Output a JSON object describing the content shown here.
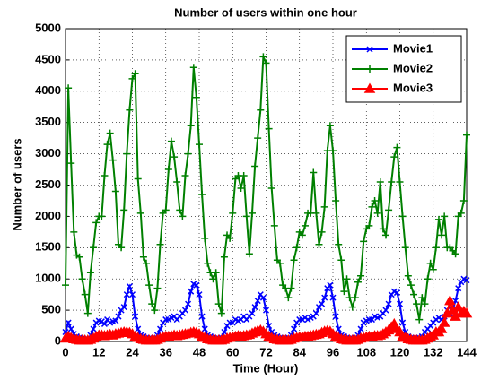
{
  "chart_data": {
    "type": "line",
    "title": "Number of users within one hour",
    "xlabel": "Time (Hour)",
    "ylabel": "Number of users",
    "x": [
      0,
      1,
      2,
      3,
      4,
      5,
      6,
      7,
      8,
      9,
      10,
      11,
      12,
      13,
      14,
      15,
      16,
      17,
      18,
      19,
      20,
      21,
      22,
      23,
      24,
      25,
      26,
      27,
      28,
      29,
      30,
      31,
      32,
      33,
      34,
      35,
      36,
      37,
      38,
      39,
      40,
      41,
      42,
      43,
      44,
      45,
      46,
      47,
      48,
      49,
      50,
      51,
      52,
      53,
      54,
      55,
      56,
      57,
      58,
      59,
      60,
      61,
      62,
      63,
      64,
      65,
      66,
      67,
      68,
      69,
      70,
      71,
      72,
      73,
      74,
      75,
      76,
      77,
      78,
      79,
      80,
      81,
      82,
      83,
      84,
      85,
      86,
      87,
      88,
      89,
      90,
      91,
      92,
      93,
      94,
      95,
      96,
      97,
      98,
      99,
      100,
      101,
      102,
      103,
      104,
      105,
      106,
      107,
      108,
      109,
      110,
      111,
      112,
      113,
      114,
      115,
      116,
      117,
      118,
      119,
      120,
      121,
      122,
      123,
      124,
      125,
      126,
      127,
      128,
      129,
      130,
      131,
      132,
      133,
      134,
      135,
      136,
      137,
      138,
      139,
      140,
      141,
      142,
      143,
      144
    ],
    "series": [
      {
        "name": "Movie1",
        "color": "#0000ff",
        "marker": "x",
        "values": [
          150,
          300,
          200,
          120,
          80,
          60,
          50,
          40,
          40,
          100,
          200,
          300,
          330,
          320,
          280,
          350,
          300,
          320,
          330,
          400,
          500,
          550,
          750,
          880,
          750,
          400,
          200,
          100,
          80,
          60,
          50,
          50,
          60,
          100,
          200,
          300,
          350,
          350,
          380,
          400,
          350,
          400,
          450,
          500,
          600,
          800,
          920,
          900,
          750,
          400,
          200,
          100,
          80,
          60,
          50,
          50,
          60,
          150,
          250,
          300,
          300,
          350,
          330,
          350,
          400,
          350,
          400,
          450,
          550,
          650,
          750,
          700,
          500,
          250,
          150,
          100,
          80,
          60,
          50,
          50,
          60,
          100,
          200,
          300,
          350,
          350,
          380,
          350,
          380,
          400,
          450,
          550,
          600,
          700,
          850,
          900,
          700,
          400,
          200,
          100,
          80,
          60,
          50,
          50,
          60,
          100,
          200,
          300,
          330,
          350,
          350,
          400,
          380,
          400,
          450,
          500,
          600,
          750,
          800,
          780,
          600,
          300,
          150,
          80,
          60,
          50,
          50,
          60,
          80,
          150,
          200,
          250,
          300,
          350,
          380,
          350,
          400,
          500,
          450,
          500,
          650,
          850,
          950,
          1000,
          980
        ]
      },
      {
        "name": "Movie2",
        "color": "#008000",
        "marker": "+",
        "values": [
          900,
          4050,
          2850,
          1750,
          1380,
          1350,
          1000,
          750,
          450,
          1100,
          1500,
          1900,
          2000,
          2000,
          2650,
          3150,
          3330,
          2900,
          2400,
          1550,
          1500,
          2100,
          3000,
          3700,
          4200,
          4280,
          2600,
          2050,
          1350,
          1250,
          900,
          600,
          500,
          850,
          1550,
          2050,
          2100,
          2750,
          3200,
          2950,
          2550,
          2100,
          2000,
          2650,
          3000,
          3450,
          4380,
          3900,
          3150,
          2350,
          1650,
          1250,
          1100,
          1000,
          1100,
          600,
          450,
          1350,
          1700,
          1650,
          2050,
          2600,
          2650,
          2450,
          2650,
          2000,
          1400,
          2050,
          2800,
          3250,
          3700,
          4550,
          4450,
          3400,
          2450,
          1850,
          1300,
          1250,
          900,
          850,
          700,
          850,
          1300,
          1500,
          1750,
          1700,
          1850,
          2050,
          2050,
          2700,
          2050,
          1550,
          1750,
          2150,
          3050,
          3450,
          3050,
          2250,
          1550,
          1300,
          800,
          1000,
          700,
          550,
          700,
          950,
          1050,
          1600,
          1800,
          1850,
          2150,
          2250,
          2050,
          2550,
          1800,
          1700,
          2100,
          2550,
          2950,
          3100,
          2550,
          2000,
          1500,
          1050,
          900,
          750,
          600,
          350,
          700,
          600,
          1000,
          1250,
          1150,
          1500,
          1950,
          1700,
          2000,
          1500,
          1500,
          1450,
          1400,
          2000,
          2050,
          2250,
          3300
        ]
      },
      {
        "name": "Movie3",
        "color": "#ff0000",
        "marker": "^",
        "values": [
          50,
          80,
          60,
          40,
          30,
          20,
          20,
          20,
          20,
          30,
          50,
          80,
          100,
          100,
          90,
          100,
          110,
          100,
          120,
          130,
          140,
          150,
          150,
          140,
          120,
          80,
          60,
          40,
          30,
          20,
          20,
          20,
          20,
          30,
          50,
          70,
          80,
          80,
          90,
          100,
          90,
          100,
          110,
          120,
          130,
          140,
          150,
          140,
          120,
          80,
          60,
          40,
          30,
          20,
          20,
          20,
          20,
          30,
          50,
          60,
          70,
          80,
          90,
          80,
          90,
          100,
          110,
          130,
          150,
          170,
          180,
          160,
          120,
          80,
          60,
          40,
          30,
          20,
          20,
          20,
          20,
          30,
          50,
          60,
          70,
          70,
          80,
          80,
          90,
          100,
          110,
          120,
          140,
          160,
          170,
          160,
          120,
          80,
          60,
          40,
          30,
          20,
          20,
          20,
          20,
          30,
          50,
          60,
          70,
          80,
          80,
          90,
          90,
          100,
          120,
          150,
          180,
          230,
          280,
          200,
          150,
          80,
          60,
          40,
          30,
          20,
          20,
          20,
          20,
          30,
          50,
          80,
          100,
          150,
          150,
          200,
          300,
          450,
          650,
          500,
          400,
          550,
          450,
          480,
          450
        ]
      }
    ],
    "xlim": [
      0,
      144
    ],
    "xticks": [
      0,
      12,
      24,
      36,
      48,
      60,
      72,
      84,
      96,
      108,
      120,
      132,
      144
    ],
    "ylim": [
      0,
      5000
    ],
    "yticks": [
      0,
      500,
      1000,
      1500,
      2000,
      2500,
      3000,
      3500,
      4000,
      4500,
      5000
    ],
    "grid": true,
    "legend": "upper right"
  }
}
